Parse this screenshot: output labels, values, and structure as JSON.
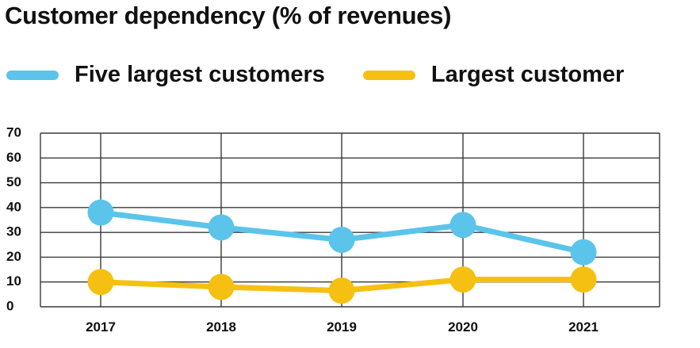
{
  "chart_data": {
    "type": "line",
    "title": "Customer dependency (% of revenues)",
    "categories": [
      "2017",
      "2018",
      "2019",
      "2020",
      "2021"
    ],
    "series": [
      {
        "name": "Five largest customers",
        "values": [
          38,
          32,
          27,
          33,
          22
        ],
        "color": "#5bc4ea"
      },
      {
        "name": "Largest customer",
        "values": [
          10,
          8,
          6.5,
          11,
          11
        ],
        "color": "#f6c013"
      }
    ],
    "yticks": [
      "0",
      "10",
      "20",
      "30",
      "40",
      "50",
      "60",
      "70"
    ],
    "ylim": [
      0,
      70
    ],
    "xlabel": "",
    "ylabel": "",
    "grid": true,
    "legend_position": "top"
  }
}
